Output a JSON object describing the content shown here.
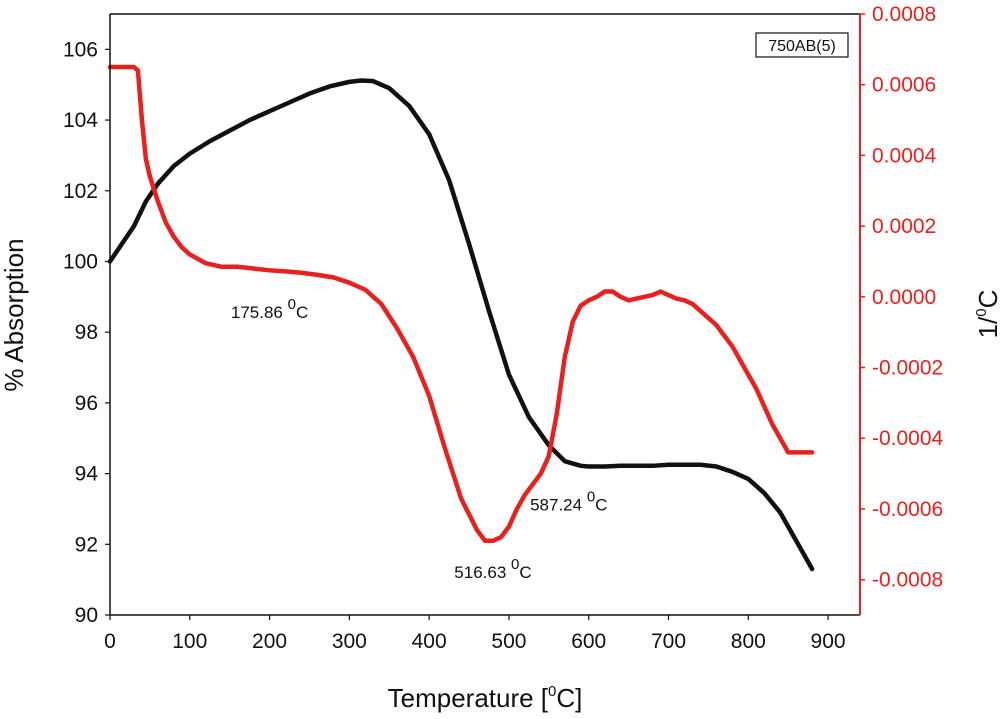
{
  "chart_data": {
    "type": "line",
    "legend_box": "750AB(5)",
    "legend_position": "top-right",
    "xlabel_main": "Temperature [",
    "xlabel_sup": "0",
    "xlabel_tail": "C]",
    "ylabel_left": "% Absorption",
    "ylabel_right_main": "1/",
    "ylabel_right_sup": "0",
    "ylabel_right_tail": "C",
    "xlim": [
      0,
      940
    ],
    "ylim_left": [
      90,
      107
    ],
    "ylim_right": [
      -0.0009,
      0.0008
    ],
    "x_ticks": [
      0,
      100,
      200,
      300,
      400,
      500,
      600,
      700,
      800,
      900
    ],
    "x_tick_labels": [
      "0",
      "100",
      "200",
      "300",
      "400",
      "500",
      "600",
      "700",
      "800",
      "900"
    ],
    "y_left_ticks": [
      90,
      92,
      94,
      96,
      98,
      100,
      102,
      104,
      106
    ],
    "y_left_tick_labels": [
      "90",
      "92",
      "94",
      "96",
      "98",
      "100",
      "102",
      "104",
      "106"
    ],
    "y_right_ticks": [
      -0.0008,
      -0.0006,
      -0.0004,
      -0.0002,
      0.0,
      0.0002,
      0.0004,
      0.0006,
      0.0008
    ],
    "y_right_tick_labels": [
      "-0.0008",
      "-0.0006",
      "-0.0004",
      "-0.0002",
      "0.0000",
      "0.0002",
      "0.0004",
      "0.0006",
      "0.0008"
    ],
    "colors": {
      "absorption": "#111111",
      "derivative": "#e8201e",
      "frame": "#111111",
      "right_axis": "#e8201e"
    },
    "series": [
      {
        "name": "% Absorption",
        "axis": "left",
        "x": [
          0,
          15,
          30,
          45,
          60,
          80,
          100,
          125,
          150,
          175,
          200,
          225,
          250,
          275,
          300,
          315,
          330,
          350,
          375,
          400,
          425,
          450,
          475,
          500,
          525,
          550,
          570,
          590,
          600,
          620,
          640,
          660,
          680,
          700,
          720,
          740,
          760,
          780,
          800,
          820,
          840,
          860,
          880
        ],
        "values": [
          100.0,
          100.5,
          101.0,
          101.7,
          102.2,
          102.7,
          103.05,
          103.4,
          103.7,
          104.0,
          104.25,
          104.5,
          104.75,
          104.95,
          105.08,
          105.12,
          105.1,
          104.9,
          104.4,
          103.6,
          102.3,
          100.5,
          98.6,
          96.8,
          95.6,
          94.8,
          94.35,
          94.22,
          94.2,
          94.2,
          94.22,
          94.22,
          94.22,
          94.25,
          94.25,
          94.25,
          94.2,
          94.05,
          93.85,
          93.45,
          92.9,
          92.1,
          91.3
        ]
      },
      {
        "name": "1/°C",
        "axis": "right",
        "x": [
          0,
          15,
          30,
          35,
          40,
          45,
          50,
          60,
          70,
          80,
          90,
          100,
          120,
          140,
          160,
          180,
          200,
          220,
          240,
          260,
          280,
          300,
          320,
          340,
          360,
          380,
          400,
          420,
          440,
          460,
          470,
          480,
          490,
          500,
          510,
          520,
          530,
          540,
          550,
          560,
          570,
          580,
          590,
          600,
          610,
          620,
          630,
          640,
          650,
          660,
          670,
          680,
          690,
          700,
          710,
          720,
          730,
          740,
          750,
          760,
          770,
          780,
          790,
          800,
          810,
          820,
          830,
          840,
          850,
          860,
          870,
          880
        ],
        "values": [
          0.00065,
          0.00065,
          0.00065,
          0.00064,
          0.0005,
          0.00039,
          0.00034,
          0.00027,
          0.00021,
          0.00017,
          0.00014,
          0.00012,
          9.5e-05,
          8.5e-05,
          8.5e-05,
          8e-05,
          7.5e-05,
          7.2e-05,
          6.8e-05,
          6.2e-05,
          5.5e-05,
          4e-05,
          2e-05,
          -2e-05,
          -9e-05,
          -0.00017,
          -0.00028,
          -0.00043,
          -0.00057,
          -0.00066,
          -0.00069,
          -0.00069,
          -0.00068,
          -0.00065,
          -0.0006,
          -0.00056,
          -0.00053,
          -0.0005,
          -0.00045,
          -0.00033,
          -0.00017,
          -7e-05,
          -2.5e-05,
          -1e-05,
          0.0,
          1.5e-05,
          1.5e-05,
          0.0,
          -1e-05,
          -5e-06,
          0.0,
          5e-06,
          1.5e-05,
          5e-06,
          -5e-06,
          -1e-05,
          -2e-05,
          -4e-05,
          -6e-05,
          -8e-05,
          -0.00011,
          -0.00014,
          -0.00018,
          -0.00022,
          -0.00026,
          -0.00031,
          -0.00036,
          -0.0004,
          -0.00044,
          -0.00044,
          -0.00044,
          -0.00044
        ]
      }
    ],
    "annotations": [
      {
        "main": "175.86 ",
        "sup": "0",
        "tail": "C",
        "x": 200,
        "y": 98.4,
        "axis": "left"
      },
      {
        "main": "516.63 ",
        "sup": "0",
        "tail": "C",
        "x": 480,
        "y": 91.05,
        "axis": "left"
      },
      {
        "main": "587.24 ",
        "sup": "0",
        "tail": "C",
        "x": 575,
        "y": 92.95,
        "axis": "left"
      }
    ]
  }
}
